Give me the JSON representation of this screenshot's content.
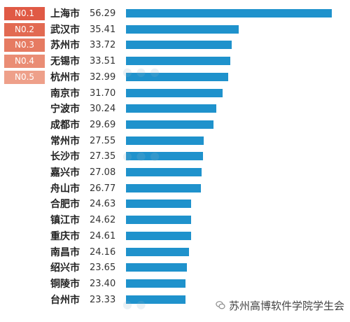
{
  "chart_data": {
    "type": "bar",
    "orientation": "horizontal",
    "categories": [
      "上海市",
      "武汉市",
      "苏州市",
      "无锡市",
      "杭州市",
      "南京市",
      "宁波市",
      "成都市",
      "常州市",
      "长沙市",
      "嘉兴市",
      "舟山市",
      "合肥市",
      "镇江市",
      "重庆市",
      "南昌市",
      "绍兴市",
      "铜陵市",
      "台州市"
    ],
    "values": [
      56.29,
      35.41,
      33.72,
      33.51,
      32.99,
      31.7,
      30.24,
      29.69,
      27.55,
      27.35,
      27.08,
      26.77,
      24.63,
      24.62,
      24.61,
      24.16,
      23.65,
      23.4,
      23.33
    ],
    "value_labels": [
      "56.29",
      "35.41",
      "33.72",
      "33.51",
      "32.99",
      "31.70",
      "30.24",
      "29.69",
      "27.55",
      "27.35",
      "27.08",
      "26.77",
      "24.63",
      "24.62",
      "24.61",
      "24.16",
      "23.65",
      "23.40",
      "23.33"
    ],
    "rank_badges": [
      "N0.1",
      "N0.2",
      "N0.3",
      "N0.4",
      "N0.5"
    ],
    "rank_colors": [
      "#e05a45",
      "#e26a52",
      "#e67b62",
      "#ea8d75",
      "#eea08a"
    ],
    "bar_color": "#1f92cc",
    "xlim": [
      10,
      56.29
    ],
    "grid": false
  },
  "footer": {
    "label": "苏州高博软件学院学生会",
    "icon": "wechat-icon"
  },
  "watermark_color": "#8fb3c9"
}
